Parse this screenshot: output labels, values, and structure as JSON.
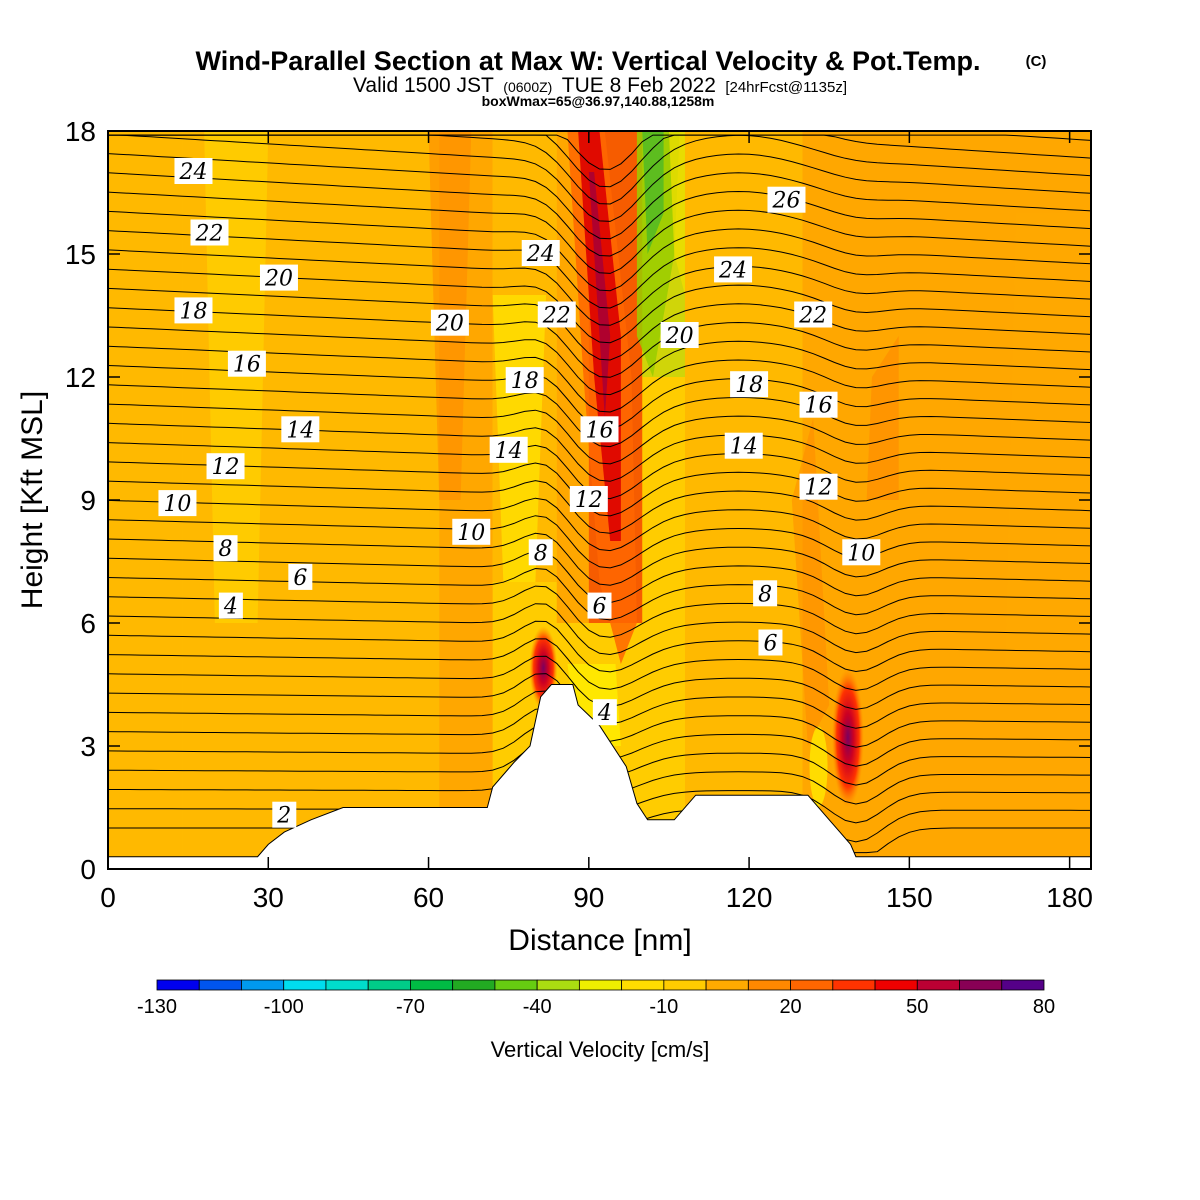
{
  "chart_data": {
    "type": "heatmap",
    "title": "Wind-Parallel Section at Max W: Vertical Velocity & Pot.Temp.",
    "title_mark": "(C)",
    "subtitle_parts": [
      "Valid 1500 JST",
      "(0600Z)",
      "TUE 8 Feb 2022",
      "[24hrFcst@1135z]"
    ],
    "subtitle2": "boxWmax=65@36.97,140.88,1258m",
    "xlabel": "Distance [nm]",
    "ylabel": "Height [Kft MSL]",
    "xlim": [
      0,
      184
    ],
    "ylim": [
      0,
      18
    ],
    "xticks": [
      0,
      30,
      60,
      90,
      120,
      150,
      180
    ],
    "yticks": [
      0,
      3,
      6,
      9,
      12,
      15,
      18
    ],
    "colorbar": {
      "label": "Vertical Velocity [cm/s]",
      "ticks": [
        -130,
        -100,
        -70,
        -40,
        -10,
        20,
        50,
        80
      ],
      "min": -130,
      "max": 80,
      "step": 10,
      "colors": [
        "#0000ee",
        "#0055ee",
        "#0099ee",
        "#00ddee",
        "#00ddcc",
        "#00cc88",
        "#00bb44",
        "#22aa22",
        "#66cc11",
        "#aadd11",
        "#eeee00",
        "#ffdd00",
        "#ffcc00",
        "#ffaa00",
        "#ff8800",
        "#ff6600",
        "#ff3300",
        "#ee0000",
        "#bb0033",
        "#880055",
        "#550088"
      ]
    },
    "vertical_velocity_cells": [
      {
        "x": [
          0,
          14
        ],
        "y": [
          0,
          18
        ],
        "v": 5
      },
      {
        "x": [
          14,
          62
        ],
        "y": [
          0,
          18
        ],
        "v": 5
      },
      {
        "x": [
          62,
          72
        ],
        "y": [
          0,
          18
        ],
        "v": 15
      },
      {
        "x": [
          72,
          84
        ],
        "y": [
          7,
          18
        ],
        "v": 5
      },
      {
        "x": [
          84,
          90
        ],
        "y": [
          6,
          18
        ],
        "v": 15
      },
      {
        "x": [
          90,
          100
        ],
        "y": [
          6,
          18
        ],
        "v": 45
      },
      {
        "x": [
          100,
          108
        ],
        "y": [
          12,
          18
        ],
        "v": -35
      },
      {
        "x": [
          108,
          130
        ],
        "y": [
          0,
          18
        ],
        "v": 5
      },
      {
        "x": [
          130,
          184
        ],
        "y": [
          0,
          18
        ],
        "v": 15
      }
    ],
    "terrain_profile": [
      [
        0,
        0.3
      ],
      [
        28,
        0.3
      ],
      [
        30,
        0.6
      ],
      [
        33,
        0.9
      ],
      [
        38,
        1.2
      ],
      [
        44,
        1.5
      ],
      [
        71,
        1.5
      ],
      [
        72,
        2.0
      ],
      [
        76,
        2.6
      ],
      [
        79,
        3.0
      ],
      [
        81,
        4.2
      ],
      [
        83,
        4.5
      ],
      [
        87,
        4.5
      ],
      [
        88,
        4.0
      ],
      [
        92,
        3.5
      ],
      [
        97,
        2.5
      ],
      [
        99,
        1.6
      ],
      [
        101,
        1.2
      ],
      [
        106,
        1.2
      ],
      [
        110,
        1.8
      ],
      [
        131,
        1.8
      ],
      [
        135,
        1.2
      ],
      [
        137,
        0.9
      ],
      [
        139,
        0.6
      ],
      [
        140,
        0.3
      ],
      [
        184,
        0.3
      ]
    ],
    "theta_labels": [
      {
        "v": "24",
        "x": 16,
        "y": 17.0
      },
      {
        "v": "22",
        "x": 19,
        "y": 15.5
      },
      {
        "v": "20",
        "x": 32,
        "y": 14.4
      },
      {
        "v": "18",
        "x": 16,
        "y": 13.6
      },
      {
        "v": "16",
        "x": 26,
        "y": 12.3
      },
      {
        "v": "14",
        "x": 36,
        "y": 10.7
      },
      {
        "v": "12",
        "x": 22,
        "y": 9.8
      },
      {
        "v": "10",
        "x": 13,
        "y": 8.9
      },
      {
        "v": "8",
        "x": 22,
        "y": 7.8
      },
      {
        "v": "6",
        "x": 36,
        "y": 7.1
      },
      {
        "v": "4",
        "x": 23,
        "y": 6.4
      },
      {
        "v": "2",
        "x": 33,
        "y": 1.3
      },
      {
        "v": "20",
        "x": 64,
        "y": 13.3
      },
      {
        "v": "24",
        "x": 81,
        "y": 15.0
      },
      {
        "v": "22",
        "x": 84,
        "y": 13.5
      },
      {
        "v": "18",
        "x": 78,
        "y": 11.9
      },
      {
        "v": "14",
        "x": 75,
        "y": 10.2
      },
      {
        "v": "16",
        "x": 92,
        "y": 10.7
      },
      {
        "v": "12",
        "x": 90,
        "y": 9.0
      },
      {
        "v": "10",
        "x": 68,
        "y": 8.2
      },
      {
        "v": "8",
        "x": 81,
        "y": 7.7
      },
      {
        "v": "6",
        "x": 92,
        "y": 6.4
      },
      {
        "v": "4",
        "x": 93,
        "y": 3.8
      },
      {
        "v": "26",
        "x": 127,
        "y": 16.3
      },
      {
        "v": "24",
        "x": 117,
        "y": 14.6
      },
      {
        "v": "20",
        "x": 107,
        "y": 13.0
      },
      {
        "v": "22",
        "x": 132,
        "y": 13.5
      },
      {
        "v": "18",
        "x": 120,
        "y": 11.8
      },
      {
        "v": "16",
        "x": 133,
        "y": 11.3
      },
      {
        "v": "14",
        "x": 119,
        "y": 10.3
      },
      {
        "v": "12",
        "x": 133,
        "y": 9.3
      },
      {
        "v": "10",
        "x": 141,
        "y": 7.7
      },
      {
        "v": "8",
        "x": 123,
        "y": 6.7
      },
      {
        "v": "6",
        "x": 124,
        "y": 5.5
      }
    ]
  }
}
